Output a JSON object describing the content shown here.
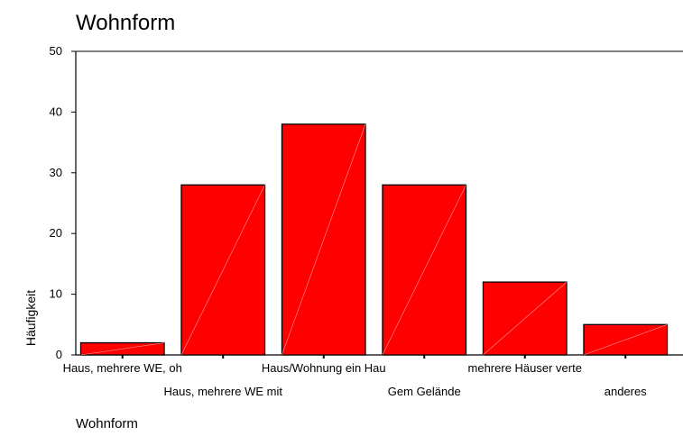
{
  "chart_data": {
    "type": "bar",
    "title": "Wohnform",
    "xlabel": "Wohnform",
    "ylabel": "Häufigkeit",
    "categories": [
      "Haus, mehrere WE, oh",
      "Haus, mehrere WE mit",
      "Haus/Wohnung ein Hau",
      "Gem Gelände",
      "mehrere Häuser verte",
      "anderes"
    ],
    "values": [
      2,
      28,
      38,
      28,
      12,
      5
    ],
    "ylim": [
      0,
      50
    ],
    "yticks": [
      0,
      10,
      20,
      30,
      40,
      50
    ],
    "bar_color": "#ff0000",
    "grid": false,
    "legend": "none"
  }
}
